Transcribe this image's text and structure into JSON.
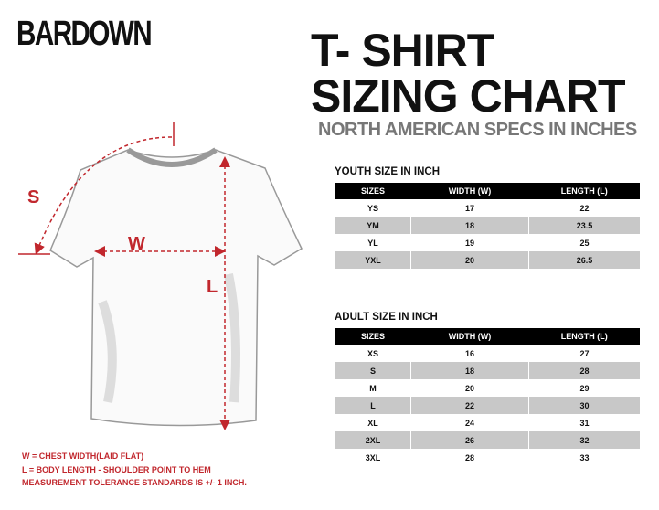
{
  "brand": "BARDOWN",
  "title": [
    "T- SHIRT",
    "SIZING CHART"
  ],
  "subtitle": "NORTH AMERICAN SPECS IN INCHES",
  "diagram": {
    "labels": [
      "S",
      "W",
      "L"
    ]
  },
  "notes": [
    "W = CHEST WIDTH(LAID FLAT)",
    "L = BODY LENGTH - SHOULDER POINT TO HEM",
    "MEASUREMENT TOLERANCE STANDARDS IS +/- 1 INCH."
  ],
  "tables": [
    {
      "title": "YOUTH SIZE IN INCH",
      "header": [
        "SIZES",
        "WIDTH (W)",
        "LENGTH (L)"
      ],
      "rows": [
        [
          "YS",
          17,
          22
        ],
        [
          "YM",
          18,
          23.5
        ],
        [
          "YL",
          19,
          25
        ],
        [
          "YXL",
          20,
          26.5
        ]
      ]
    },
    {
      "title": "ADULT SIZE IN INCH",
      "header": [
        "SIZES",
        "WIDTH (W)",
        "LENGTH (L)"
      ],
      "rows": [
        [
          "XS",
          16,
          27
        ],
        [
          "S",
          18,
          28
        ],
        [
          "M",
          20,
          29
        ],
        [
          "L",
          22,
          30
        ],
        [
          "XL",
          24,
          31
        ],
        [
          "2XL",
          26,
          32
        ],
        [
          "3XL",
          28,
          33
        ]
      ]
    }
  ]
}
